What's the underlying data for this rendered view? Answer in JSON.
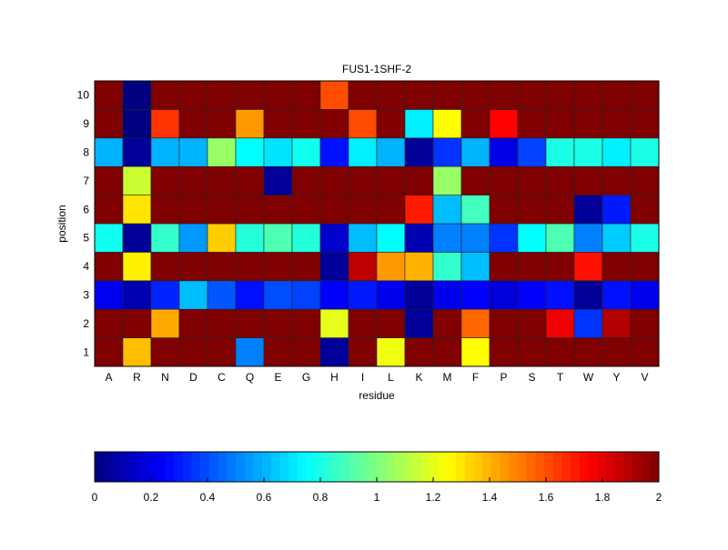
{
  "chart_data": {
    "type": "heatmap",
    "title": "FUS1-1SHF-2",
    "xlabel": "residue",
    "ylabel": "position",
    "x_categories": [
      "A",
      "R",
      "N",
      "D",
      "C",
      "Q",
      "E",
      "G",
      "H",
      "I",
      "L",
      "K",
      "M",
      "F",
      "P",
      "S",
      "T",
      "W",
      "Y",
      "V"
    ],
    "y_categories": [
      "1",
      "2",
      "3",
      "4",
      "5",
      "6",
      "7",
      "8",
      "9",
      "10"
    ],
    "colormap": "jet",
    "clim": [
      0,
      2
    ],
    "colorbar": {
      "placement": "bottom",
      "ticks": [
        "0",
        "0.2",
        "0.4",
        "0.6",
        "0.8",
        "1",
        "1.2",
        "1.4",
        "1.6",
        "1.8",
        "2"
      ]
    },
    "values_by_position": {
      "1": [
        2,
        1.38,
        2,
        2,
        2,
        0.5,
        2,
        2,
        0.05,
        2,
        1.22,
        2,
        2,
        1.25,
        2,
        2,
        2,
        2,
        2,
        2
      ],
      "2": [
        2,
        2,
        1.42,
        2,
        2,
        2,
        2,
        2,
        1.2,
        2,
        2,
        0.05,
        2,
        1.55,
        2,
        2,
        1.78,
        0.35,
        1.9,
        2
      ],
      "3": [
        0.22,
        0.1,
        0.32,
        0.62,
        0.42,
        0.28,
        0.4,
        0.38,
        0.25,
        0.3,
        0.22,
        0.05,
        0.22,
        0.25,
        0.18,
        0.25,
        0.28,
        0.05,
        0.28,
        0.22
      ],
      "4": [
        2,
        1.28,
        2,
        2,
        2,
        2,
        2,
        2,
        0.05,
        1.88,
        1.45,
        1.4,
        0.85,
        0.62,
        2,
        2,
        2,
        1.72,
        2,
        2
      ],
      "5": [
        0.78,
        0.05,
        0.85,
        0.55,
        1.35,
        0.82,
        0.9,
        0.82,
        0.15,
        0.62,
        0.75,
        0.1,
        0.5,
        0.5,
        0.35,
        0.75,
        0.9,
        0.5,
        0.65,
        0.8
      ],
      "6": [
        2,
        1.3,
        2,
        2,
        2,
        2,
        2,
        2,
        2,
        2,
        2,
        1.7,
        0.62,
        0.88,
        2,
        2,
        2,
        0.05,
        0.3,
        2
      ],
      "7": [
        2,
        1.15,
        2,
        2,
        2,
        2,
        0.05,
        2,
        2,
        2,
        2,
        2,
        1.05,
        2,
        2,
        2,
        2,
        2,
        2,
        2
      ],
      "8": [
        0.6,
        0.05,
        0.6,
        0.6,
        1.05,
        0.75,
        0.7,
        0.78,
        0.28,
        0.72,
        0.6,
        0.05,
        0.35,
        0.6,
        0.2,
        0.38,
        0.8,
        0.8,
        0.72,
        0.8
      ],
      "9": [
        2,
        0,
        1.65,
        2,
        2,
        1.45,
        2,
        2,
        2,
        1.6,
        2,
        0.72,
        1.25,
        2,
        1.75,
        2,
        2,
        2,
        2,
        2
      ],
      "10": [
        2,
        0,
        2,
        2,
        2,
        2,
        2,
        2,
        1.6,
        2,
        2,
        2,
        2,
        2,
        2,
        2,
        2,
        2,
        2,
        2
      ]
    }
  }
}
